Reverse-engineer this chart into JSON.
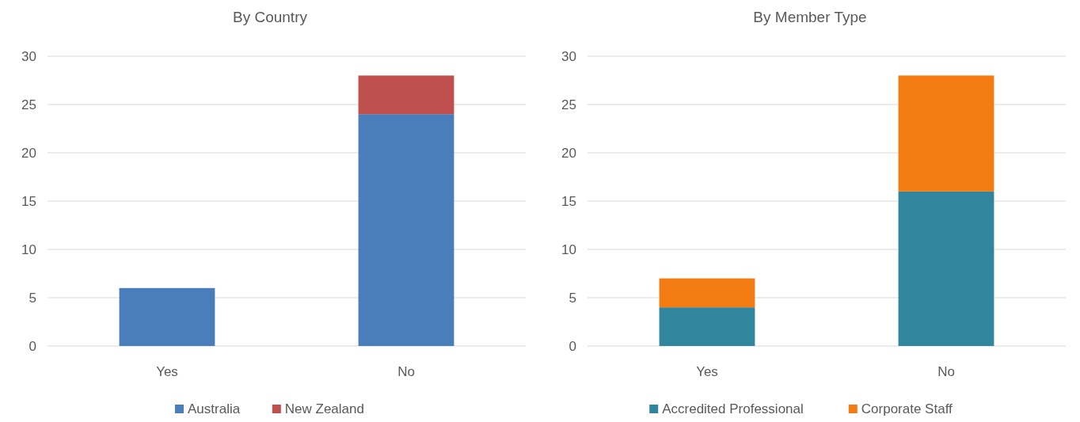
{
  "chart_data": [
    {
      "type": "bar",
      "title": "By Country",
      "categories": [
        "Yes",
        "No"
      ],
      "series": [
        {
          "name": "Australia",
          "color": "#4a7ebb",
          "values": [
            6,
            24
          ]
        },
        {
          "name": "New Zealand",
          "color": "#c0504d",
          "values": [
            0,
            4
          ]
        }
      ],
      "stacked": true,
      "ylim": [
        0,
        30
      ],
      "yticks": [
        0,
        5,
        10,
        15,
        20,
        25,
        30
      ],
      "grid": "y",
      "legend": "bottom"
    },
    {
      "type": "bar",
      "title": "By Member Type",
      "categories": [
        "Yes",
        "No"
      ],
      "series": [
        {
          "name": "Accredited Professional",
          "color": "#31859c",
          "values": [
            4,
            16
          ]
        },
        {
          "name": "Corporate Staff",
          "color": "#f47a12",
          "values": [
            3,
            12
          ]
        }
      ],
      "stacked": true,
      "ylim": [
        0,
        30
      ],
      "yticks": [
        0,
        5,
        10,
        15,
        20,
        25,
        30
      ],
      "grid": "y",
      "legend": "bottom"
    }
  ]
}
